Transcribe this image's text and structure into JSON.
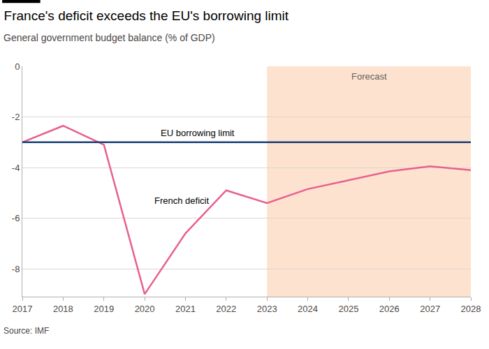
{
  "chart_data": {
    "type": "line",
    "title": "France's deficit exceeds the EU's borrowing limit",
    "subtitle": "General government budget balance (% of GDP)",
    "source": "Source: IMF",
    "x": [
      2017,
      2018,
      2019,
      2020,
      2021,
      2022,
      2023,
      2024,
      2025,
      2026,
      2027,
      2028
    ],
    "series": [
      {
        "name": "French deficit",
        "color": "#e8608f",
        "values": [
          -3.0,
          -2.35,
          -3.1,
          -9.0,
          -6.6,
          -4.9,
          -5.4,
          -4.85,
          -4.5,
          -4.15,
          -3.95,
          -4.1
        ]
      },
      {
        "name": "EU borrowing limit",
        "color": "#1a3e78",
        "values": [
          -3,
          -3,
          -3,
          -3,
          -3,
          -3,
          -3,
          -3,
          -3,
          -3,
          -3,
          -3
        ]
      }
    ],
    "forecast": {
      "label": "Forecast",
      "from": 2023,
      "to": 2028,
      "color": "#fde3cf"
    },
    "xlim": [
      2017,
      2028
    ],
    "xticks": [
      2017,
      2018,
      2019,
      2020,
      2021,
      2022,
      2023,
      2024,
      2025,
      2026,
      2027,
      2028
    ],
    "ylim": [
      -9.1,
      0
    ],
    "yticks": [
      0,
      -2,
      -4,
      -6,
      -8
    ],
    "grid": true
  }
}
